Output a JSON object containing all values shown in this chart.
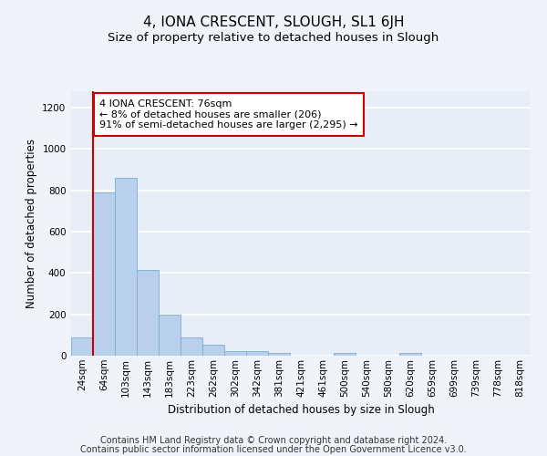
{
  "title": "4, IONA CRESCENT, SLOUGH, SL1 6JH",
  "subtitle": "Size of property relative to detached houses in Slough",
  "xlabel": "Distribution of detached houses by size in Slough",
  "ylabel": "Number of detached properties",
  "bar_color": "#b8d0eb",
  "bar_edge_color": "#7aafd4",
  "bg_color": "#e8eef8",
  "grid_color": "#ffffff",
  "fig_color": "#f0f4fa",
  "categories": [
    "24sqm",
    "64sqm",
    "103sqm",
    "143sqm",
    "183sqm",
    "223sqm",
    "262sqm",
    "302sqm",
    "342sqm",
    "381sqm",
    "421sqm",
    "461sqm",
    "500sqm",
    "540sqm",
    "580sqm",
    "620sqm",
    "659sqm",
    "699sqm",
    "739sqm",
    "778sqm",
    "818sqm"
  ],
  "values": [
    90,
    790,
    860,
    415,
    200,
    90,
    55,
    22,
    22,
    15,
    0,
    0,
    15,
    0,
    0,
    15,
    0,
    0,
    0,
    0,
    0
  ],
  "ylim": [
    0,
    1280
  ],
  "yticks": [
    0,
    200,
    400,
    600,
    800,
    1000,
    1200
  ],
  "vline_x_index": 1,
  "vline_color": "#cc0000",
  "annotation_text": "4 IONA CRESCENT: 76sqm\n← 8% of detached houses are smaller (206)\n91% of semi-detached houses are larger (2,295) →",
  "annotation_box_color": "#ffffff",
  "annotation_box_edge_color": "#cc0000",
  "footer_line1": "Contains HM Land Registry data © Crown copyright and database right 2024.",
  "footer_line2": "Contains public sector information licensed under the Open Government Licence v3.0.",
  "title_fontsize": 11,
  "subtitle_fontsize": 9.5,
  "axis_label_fontsize": 8.5,
  "tick_fontsize": 7.5,
  "annotation_fontsize": 8,
  "footer_fontsize": 7
}
